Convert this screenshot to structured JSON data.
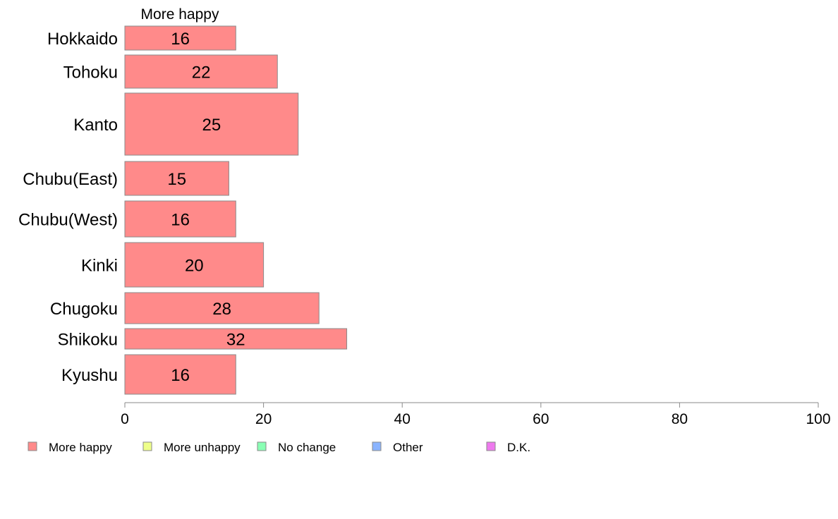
{
  "chart_data": {
    "type": "bar",
    "orientation": "horizontal",
    "stacked": true,
    "variable_width": true,
    "categories": [
      "Hokkaido",
      "Tohoku",
      "Kanto",
      "Chubu(East)",
      "Chubu(West)",
      "Kinki",
      "Chugoku",
      "Shikoku",
      "Kyushu"
    ],
    "series": [
      {
        "name": "More happy",
        "color": "#ff8a8a",
        "values": [
          16,
          22,
          25,
          15,
          16,
          20,
          28,
          32,
          16
        ],
        "data_labels": [
          "16",
          "22",
          "25",
          "15",
          "16",
          "20",
          "28",
          "32",
          "16"
        ]
      },
      {
        "name": "More unhappy",
        "color": "#eeff8a"
      },
      {
        "name": "No change",
        "color": "#8affb4"
      },
      {
        "name": "Other",
        "color": "#8ab4ff"
      },
      {
        "name": "D.K.",
        "color": "#ee7aee"
      }
    ],
    "column_header": "More happy",
    "xlim": [
      0,
      100
    ],
    "x_ticks": [
      "0",
      "20",
      "40",
      "60",
      "80",
      "100"
    ],
    "grid": false,
    "legend_position": "bottom-left"
  }
}
